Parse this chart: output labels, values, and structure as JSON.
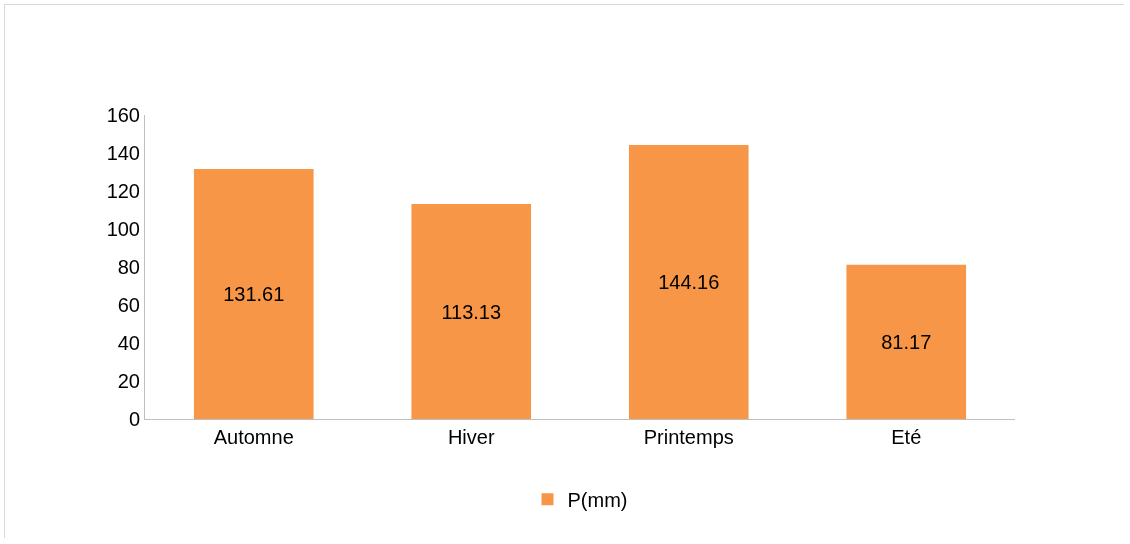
{
  "chart_data": {
    "type": "bar",
    "categories": [
      "Automne",
      "Hiver",
      "Printemps",
      "Eté"
    ],
    "series": [
      {
        "name": "P(mm)",
        "color": "#f79646",
        "values": [
          131.61,
          113.13,
          144.16,
          81.17
        ]
      }
    ],
    "ylim": [
      0,
      160
    ],
    "yticks": [
      0,
      20,
      40,
      60,
      80,
      100,
      120,
      140,
      160
    ],
    "grid": false,
    "legend": "bottom",
    "data_labels": true
  }
}
